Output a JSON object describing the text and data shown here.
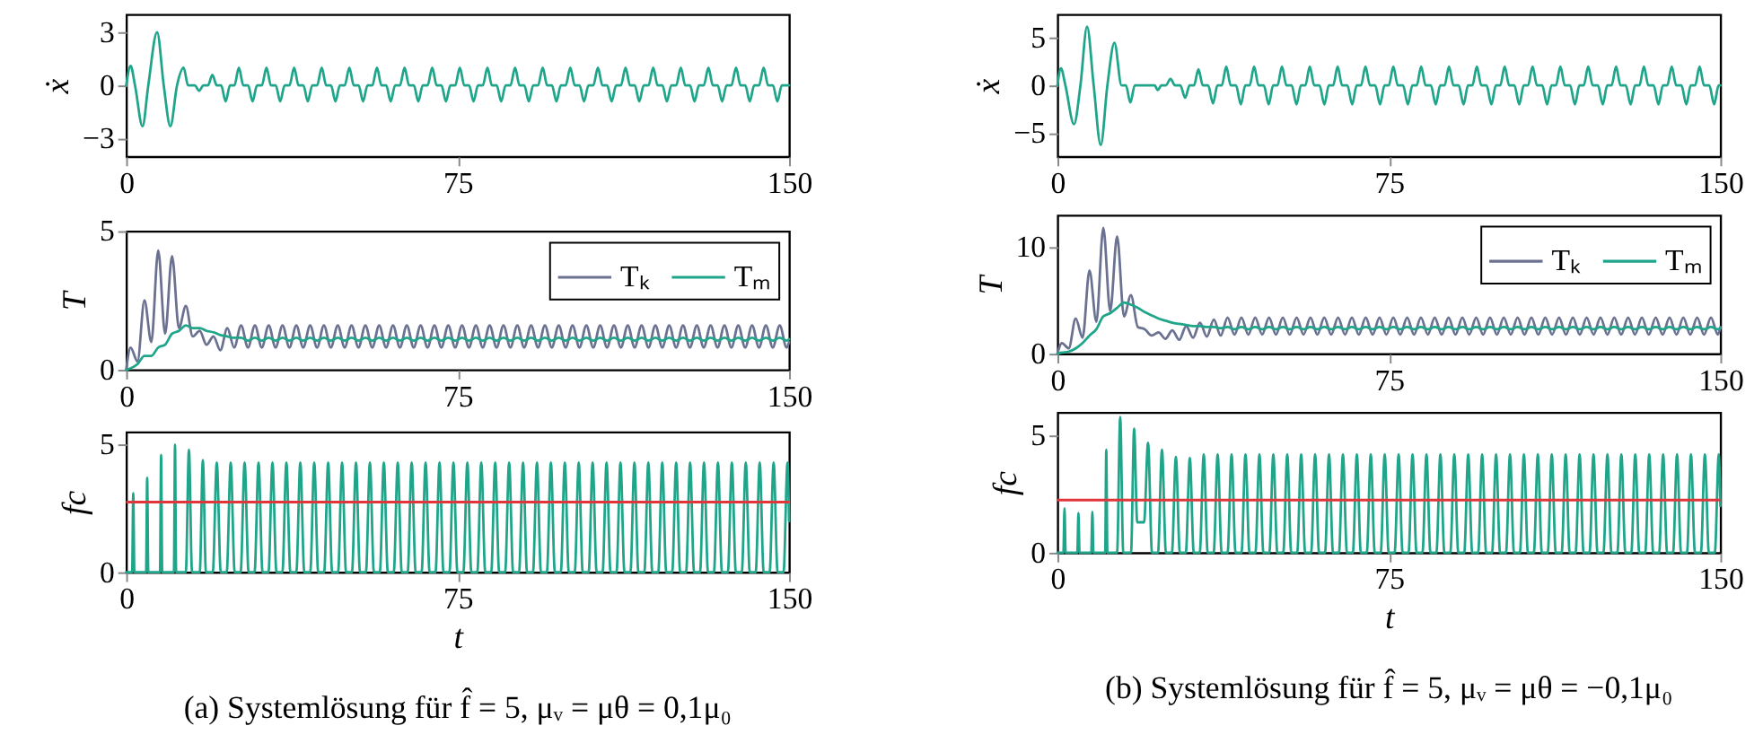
{
  "chart_data": [
    {
      "type": "line",
      "ylabel": "ẋ",
      "xlim": [
        0,
        150
      ],
      "ylim": [
        -4,
        4
      ],
      "xticks": [
        0,
        75,
        150
      ],
      "yticks": [
        -3,
        0,
        3
      ],
      "x": [
        0,
        1,
        2,
        3.7,
        5,
        7,
        8.5,
        10,
        11.5,
        13,
        14,
        15.5,
        16.5,
        17.5,
        18.5,
        19.5,
        20.5,
        21.5,
        22.5,
        23.5,
        24.5,
        25.5,
        26.5,
        27.6,
        28.6,
        29.6,
        30.7,
        31.75,
        32.75,
        33.85,
        34.85,
        35.85,
        36.95,
        38,
        39,
        40.1,
        41.1,
        42.1,
        43.2,
        44.25,
        45.25,
        46.35,
        47.35,
        48.35,
        49.45,
        50.5,
        51.5,
        52.6,
        53.6,
        54.6,
        55.7,
        56.75,
        57.75,
        58.85,
        59.85,
        60.85,
        61.95,
        63,
        64,
        65.1,
        66.1,
        67.1,
        68.2,
        69.25,
        70.25,
        71.35,
        72.35,
        73.35,
        74.45,
        75.5,
        76.5,
        77.6,
        78.6,
        79.6,
        80.7,
        81.75,
        82.75,
        83.85,
        84.85,
        85.85,
        86.95,
        88,
        89,
        90.1,
        91.1,
        92.1,
        93.2,
        94.25,
        95.25,
        96.35,
        97.35,
        98.35,
        99.45,
        100.5,
        101.5,
        102.6,
        103.6,
        104.6,
        105.7,
        106.75,
        107.75,
        108.85,
        109.85,
        110.85,
        111.95,
        113,
        114,
        115.1,
        116.1,
        117.1,
        118.2,
        119.25,
        120.25,
        121.35,
        122.35,
        123.35,
        124.45,
        125.5,
        126.5,
        127.6,
        128.6,
        129.6,
        130.7,
        131.75,
        132.75,
        133.85,
        134.85,
        135.85,
        136.95,
        138,
        139,
        140.1,
        141.1,
        142.1,
        143.2,
        144.25,
        145.25,
        146.35,
        147.35,
        148.35,
        149.45,
        150
      ],
      "series": [
        {
          "color": "#1fa58a",
          "values": [
            0,
            1.1,
            0,
            -2.3,
            0,
            3,
            0,
            -2.3,
            0,
            1,
            0,
            0,
            -0.3,
            0,
            0,
            0.6,
            0,
            0,
            -0.9,
            0,
            0,
            1,
            0,
            0,
            -0.9,
            0,
            0,
            1,
            0,
            0,
            -0.9,
            0,
            0,
            1,
            0,
            0,
            -0.9,
            0,
            0,
            1,
            0,
            0,
            -0.9,
            0,
            0,
            1,
            0,
            0,
            -0.9,
            0,
            0,
            1,
            0,
            0,
            -0.9,
            0,
            0,
            1,
            0,
            0,
            -0.9,
            0,
            0,
            1,
            0,
            0,
            -0.9,
            0,
            0,
            1,
            0,
            0,
            -0.9,
            0,
            0,
            1,
            0,
            0,
            -0.9,
            0,
            0,
            1,
            0,
            0,
            -0.9,
            0,
            0,
            1,
            0,
            0,
            -0.9,
            0,
            0,
            1,
            0,
            0,
            -0.9,
            0,
            0,
            1,
            0,
            0,
            -0.9,
            0,
            0,
            1,
            0,
            0,
            -0.9,
            0,
            0,
            1,
            0,
            0,
            -0.9,
            0,
            0,
            1,
            0,
            0,
            -0.9,
            0,
            0,
            1,
            0,
            0,
            -0.9,
            0,
            0,
            1,
            0,
            0,
            -0.9,
            0,
            0,
            1,
            0,
            0,
            -0.9,
            0,
            0,
            0
          ]
        }
      ]
    },
    {
      "type": "line",
      "ylabel": "T",
      "xlim": [
        0,
        150
      ],
      "ylim": [
        0,
        5
      ],
      "xticks": [
        0,
        75,
        150
      ],
      "yticks": [
        0,
        5
      ],
      "legend": "top right",
      "x": [
        0,
        1,
        2.56,
        4.13,
        5.69,
        7.25,
        8.81,
        10.38,
        11.94,
        13.5,
        15.06,
        16.63,
        18.19,
        19.75,
        21.31,
        22.88,
        24.44,
        26,
        27.56,
        29.13,
        30.69,
        32.25,
        33.81,
        35.38,
        36.94,
        38.5,
        40.06,
        41.63,
        43.19,
        44.75,
        46.31,
        47.88,
        49.44,
        51,
        52.56,
        54.13,
        55.69,
        57.25,
        58.81,
        60.38,
        61.94,
        63.5,
        65.06,
        66.63,
        68.19,
        69.75,
        71.31,
        72.88,
        74.44,
        76,
        77.56,
        79.13,
        80.69,
        82.25,
        83.81,
        85.38,
        86.94,
        88.5,
        90.06,
        91.63,
        93.19,
        94.75,
        96.31,
        97.88,
        99.44,
        101,
        102.56,
        104.13,
        105.69,
        107.25,
        108.81,
        110.38,
        111.94,
        113.5,
        115.06,
        116.63,
        118.19,
        119.75,
        121.31,
        122.88,
        124.44,
        126,
        127.56,
        129.13,
        130.69,
        132.25,
        133.81,
        135.38,
        136.94,
        138.5,
        140.06,
        141.63,
        143.19,
        144.75,
        146.31,
        147.88,
        149.44,
        150
      ],
      "series": [
        {
          "name": "Tₖ",
          "color": "#6b7191",
          "values": [
            0,
            0.8,
            0.3,
            2.5,
            1.0,
            4.3,
            1.3,
            4.1,
            1.5,
            2.3,
            1.2,
            1.4,
            0.9,
            1.2,
            0.7,
            1.5,
            0.8,
            1.6,
            0.8,
            1.6,
            0.8,
            1.6,
            0.8,
            1.6,
            0.8,
            1.6,
            0.8,
            1.6,
            0.8,
            1.6,
            0.8,
            1.6,
            0.8,
            1.6,
            0.8,
            1.6,
            0.8,
            1.6,
            0.8,
            1.6,
            0.8,
            1.6,
            0.8,
            1.6,
            0.8,
            1.6,
            0.8,
            1.6,
            0.8,
            1.6,
            0.8,
            1.6,
            0.8,
            1.6,
            0.8,
            1.6,
            0.8,
            1.6,
            0.8,
            1.6,
            0.8,
            1.6,
            0.8,
            1.6,
            0.8,
            1.6,
            0.8,
            1.6,
            0.8,
            1.6,
            0.8,
            1.6,
            0.8,
            1.6,
            0.8,
            1.6,
            0.8,
            1.6,
            0.8,
            1.6,
            0.8,
            1.6,
            0.8,
            1.6,
            0.8,
            1.6,
            0.8,
            1.6,
            0.8,
            1.6,
            0.8,
            1.6,
            0.8,
            1.6,
            0.8,
            1.6,
            0.8,
            1.0
          ]
        },
        {
          "name": "Tₘ",
          "color": "#1fa58a",
          "values": [
            0,
            0.05,
            0.2,
            0.5,
            0.5,
            0.8,
            0.9,
            1.3,
            1.4,
            1.6,
            1.5,
            1.5,
            1.4,
            1.35,
            1.25,
            1.2,
            1.15,
            1.15,
            1.05,
            1.15,
            1.05,
            1.15,
            1.05,
            1.15,
            1.05,
            1.15,
            1.05,
            1.15,
            1.05,
            1.15,
            1.05,
            1.15,
            1.05,
            1.15,
            1.05,
            1.15,
            1.05,
            1.15,
            1.05,
            1.15,
            1.05,
            1.15,
            1.05,
            1.15,
            1.05,
            1.15,
            1.05,
            1.15,
            1.05,
            1.15,
            1.05,
            1.15,
            1.05,
            1.15,
            1.05,
            1.15,
            1.05,
            1.15,
            1.05,
            1.15,
            1.05,
            1.15,
            1.05,
            1.15,
            1.05,
            1.15,
            1.05,
            1.15,
            1.05,
            1.15,
            1.05,
            1.15,
            1.05,
            1.15,
            1.05,
            1.15,
            1.05,
            1.15,
            1.05,
            1.15,
            1.05,
            1.15,
            1.05,
            1.15,
            1.05,
            1.15,
            1.05,
            1.15,
            1.05,
            1.15,
            1.05,
            1.15,
            1.05,
            1.15,
            1.05,
            1.15,
            1.05,
            1.1
          ]
        }
      ]
    },
    {
      "type": "line",
      "ylabel": "fc",
      "xlabel": "t",
      "xlim": [
        0,
        150
      ],
      "ylim": [
        0,
        5.5
      ],
      "xticks": [
        0,
        75,
        150
      ],
      "yticks": [
        0,
        5
      ],
      "ref_lines": [
        {
          "axis": "y",
          "value": 2.75,
          "color": "#e0353a"
        }
      ],
      "annotations": [
        "(a) Systemlösung für f̂ = 5, μᵥ = μθ = 0,1μ₀"
      ],
      "x": [
        0,
        1.35,
        1.6,
        1.85,
        4.5,
        4.75,
        5,
        7.65,
        7.9,
        8.15,
        10.8,
        11.05,
        11.3,
        13.5,
        14.2,
        14.9,
        16.65,
        17.35,
        18.05,
        19.6,
        20.5,
        21.4,
        22.75,
        23.65,
        24.55,
        25.9,
        26.8,
        27.7,
        29.05,
        29.95,
        30.85,
        32.2,
        33.1,
        34,
        35.35,
        36.25,
        37.15,
        38.5,
        39.4,
        40.3,
        41.65,
        42.55,
        43.45,
        44.8,
        45.7,
        46.6,
        47.95,
        48.85,
        49.75,
        51.1,
        52,
        52.9,
        54.25,
        55.15,
        56.05,
        57.4,
        58.3,
        59.2,
        60.55,
        61.45,
        62.35,
        63.7,
        64.6,
        65.5,
        66.85,
        67.75,
        68.65,
        70,
        70.9,
        71.8,
        73.15,
        74.05,
        74.95,
        76.3,
        77.2,
        78.1,
        79.45,
        80.35,
        81.25,
        82.6,
        83.5,
        84.4,
        85.75,
        86.65,
        87.55,
        88.9,
        89.8,
        90.7,
        92.05,
        92.95,
        93.85,
        95.2,
        96.1,
        97,
        98.35,
        99.25,
        100.15,
        101.5,
        102.4,
        103.3,
        104.65,
        105.55,
        106.45,
        107.8,
        108.7,
        109.6,
        110.95,
        111.85,
        112.75,
        114.1,
        115,
        115.9,
        117.25,
        118.15,
        119.05,
        120.4,
        121.3,
        122.2,
        123.55,
        124.45,
        125.35,
        126.7,
        127.6,
        128.5,
        129.85,
        130.75,
        131.65,
        133,
        133.9,
        134.8,
        136.15,
        137.05,
        137.95,
        139.3,
        140.2,
        141.1,
        142.45,
        143.35,
        144.25,
        145.6,
        146.5,
        147.4,
        148.75,
        149.65,
        150
      ],
      "series": [
        {
          "color": "#1fa58a",
          "values": [
            0,
            0,
            3.1,
            0,
            0,
            3.7,
            0,
            0,
            4.6,
            0,
            0,
            5,
            0,
            0,
            4.8,
            0,
            0,
            4.4,
            0,
            0,
            4.3,
            0,
            0,
            4.3,
            0,
            0,
            4.3,
            0,
            0,
            4.3,
            0,
            0,
            4.3,
            0,
            0,
            4.3,
            0,
            0,
            4.3,
            0,
            0,
            4.3,
            0,
            0,
            4.3,
            0,
            0,
            4.3,
            0,
            0,
            4.3,
            0,
            0,
            4.3,
            0,
            0,
            4.3,
            0,
            0,
            4.3,
            0,
            0,
            4.3,
            0,
            0,
            4.3,
            0,
            0,
            4.3,
            0,
            0,
            4.3,
            0,
            0,
            4.3,
            0,
            0,
            4.3,
            0,
            0,
            4.3,
            0,
            0,
            4.3,
            0,
            0,
            4.3,
            0,
            0,
            4.3,
            0,
            0,
            4.3,
            0,
            0,
            4.3,
            0,
            0,
            4.3,
            0,
            0,
            4.3,
            0,
            0,
            4.3,
            0,
            0,
            4.3,
            0,
            0,
            4.3,
            0,
            0,
            4.3,
            0,
            0,
            4.3,
            0,
            0,
            4.3,
            0,
            0,
            4.3,
            0,
            0,
            4.3,
            0,
            0,
            4.3,
            0,
            0,
            4.3,
            0,
            0,
            4.3,
            0,
            0,
            4.3,
            0,
            0,
            4.3,
            0,
            0,
            4.3,
            2
          ]
        }
      ]
    },
    {
      "type": "line",
      "ylabel": "ẋ",
      "xlim": [
        0,
        150
      ],
      "ylim": [
        -7.5,
        7.5
      ],
      "xticks": [
        0,
        75,
        150
      ],
      "yticks": [
        -5,
        0,
        5
      ],
      "x": [
        0,
        0.8,
        1.8,
        3.75,
        5.2,
        6.7,
        8.2,
        9.8,
        11.3,
        12.9,
        14.5,
        15.5,
        16.5,
        17.5,
        22,
        22.7,
        23.5,
        24.5,
        25.6,
        26.6,
        27.8,
        28.9,
        29.9,
        30.9,
        31.9,
        32.9,
        34.1,
        35.2,
        36.2,
        37.2,
        38.2,
        39.2,
        40.4,
        41.5,
        42.5,
        43.5,
        44.5,
        45.5,
        46.7,
        47.8,
        48.8,
        49.8,
        50.8,
        51.8,
        53,
        54.1,
        55.1,
        56.1,
        57.1,
        58.1,
        59.3,
        60.4,
        61.4,
        62.4,
        63.4,
        64.4,
        65.6,
        66.7,
        67.7,
        68.7,
        69.7,
        70.7,
        71.9,
        73,
        74,
        75,
        76,
        77,
        78.2,
        79.3,
        80.3,
        81.3,
        82.3,
        83.3,
        84.5,
        85.6,
        86.6,
        87.6,
        88.6,
        89.6,
        90.8,
        91.9,
        92.9,
        93.9,
        94.9,
        95.9,
        97.1,
        98.2,
        99.2,
        100.2,
        101.2,
        102.2,
        103.4,
        104.5,
        105.5,
        106.5,
        107.5,
        108.5,
        109.7,
        110.8,
        111.8,
        112.8,
        113.8,
        114.8,
        116,
        117.1,
        118.1,
        119.1,
        120.1,
        121.1,
        122.3,
        123.4,
        124.4,
        125.4,
        126.4,
        127.4,
        128.6,
        129.7,
        130.7,
        131.7,
        132.7,
        133.7,
        134.9,
        136,
        137,
        138,
        139,
        140,
        141.2,
        142.3,
        143.3,
        144.3,
        145.3,
        146.3,
        147.5,
        148.6,
        149.6,
        150
      ],
      "series": [
        {
          "color": "#1fa58a",
          "values": [
            0,
            1.8,
            0,
            -4.1,
            0,
            6.2,
            0,
            -6.3,
            0,
            4.5,
            0,
            0,
            -1.8,
            0,
            0,
            -0.5,
            0,
            0,
            0.7,
            0,
            0,
            -1.3,
            0,
            0,
            1.7,
            0,
            0,
            -1.9,
            0,
            0,
            2,
            0,
            0,
            -2,
            0,
            0,
            2,
            0,
            0,
            -2,
            0,
            0,
            2,
            0,
            0,
            -2,
            0,
            0,
            2,
            0,
            0,
            -2,
            0,
            0,
            2,
            0,
            0,
            -2,
            0,
            0,
            2,
            0,
            0,
            -2,
            0,
            0,
            2,
            0,
            0,
            -2,
            0,
            0,
            2,
            0,
            0,
            -2,
            0,
            0,
            2,
            0,
            0,
            -2,
            0,
            0,
            2,
            0,
            0,
            -2,
            0,
            0,
            2,
            0,
            0,
            -2,
            0,
            0,
            2,
            0,
            0,
            -2,
            0,
            0,
            2,
            0,
            0,
            -2,
            0,
            0,
            2,
            0,
            0,
            -2,
            0,
            0,
            2,
            0,
            0,
            -2,
            0,
            0,
            2,
            0,
            0,
            -2,
            0,
            0,
            2,
            0,
            0,
            -2,
            0,
            0,
            2,
            0,
            0,
            -2,
            0,
            0
          ]
        }
      ]
    },
    {
      "type": "line",
      "ylabel": "T",
      "xlim": [
        0,
        150
      ],
      "ylim": [
        0,
        13
      ],
      "xticks": [
        0,
        75,
        150
      ],
      "yticks": [
        0,
        10
      ],
      "legend": "top right",
      "x": [
        0,
        1,
        2.56,
        4.13,
        5.69,
        7.25,
        8.81,
        10.38,
        11.94,
        13.5,
        15.06,
        16.63,
        18.19,
        19.75,
        21.31,
        22.88,
        24.44,
        26,
        27.56,
        29.13,
        30.69,
        32.25,
        33.81,
        35.38,
        36.94,
        38.5,
        40.06,
        41.63,
        43.19,
        44.75,
        46.31,
        47.88,
        49.44,
        51,
        52.56,
        54.13,
        55.69,
        57.25,
        58.81,
        60.38,
        61.94,
        63.5,
        65.06,
        66.63,
        68.19,
        69.75,
        71.31,
        72.88,
        74.44,
        76,
        77.56,
        79.13,
        80.69,
        82.25,
        83.81,
        85.38,
        86.94,
        88.5,
        90.06,
        91.63,
        93.19,
        94.75,
        96.31,
        97.88,
        99.44,
        101,
        102.56,
        104.13,
        105.69,
        107.25,
        108.81,
        110.38,
        111.94,
        113.5,
        115.06,
        116.63,
        118.19,
        119.75,
        121.31,
        122.88,
        124.44,
        126,
        127.56,
        129.13,
        130.69,
        132.25,
        133.81,
        135.38,
        136.94,
        138.5,
        140.06,
        141.63,
        143.19,
        144.75,
        146.31,
        147.88,
        149.44,
        150
      ],
      "series": [
        {
          "name": "Tₖ",
          "color": "#6b7191",
          "values": [
            0,
            1,
            0.5,
            3.3,
            1.5,
            7.8,
            3,
            11.8,
            4,
            11,
            3.5,
            5.5,
            2.5,
            2.3,
            1.7,
            2,
            1.4,
            2.2,
            1.3,
            2.6,
            1.5,
            2.9,
            1.6,
            3.2,
            1.7,
            3.4,
            1.8,
            3.4,
            1.8,
            3.4,
            1.8,
            3.4,
            1.8,
            3.4,
            1.8,
            3.4,
            1.8,
            3.4,
            1.8,
            3.4,
            1.8,
            3.4,
            1.8,
            3.4,
            1.8,
            3.4,
            1.8,
            3.4,
            1.8,
            3.4,
            1.8,
            3.4,
            1.8,
            3.4,
            1.8,
            3.4,
            1.8,
            3.4,
            1.8,
            3.4,
            1.8,
            3.4,
            1.8,
            3.4,
            1.8,
            3.4,
            1.8,
            3.4,
            1.8,
            3.4,
            1.8,
            3.4,
            1.8,
            3.4,
            1.8,
            3.4,
            1.8,
            3.4,
            1.8,
            3.4,
            1.8,
            3.4,
            1.8,
            3.4,
            1.8,
            3.4,
            1.8,
            3.4,
            1.8,
            3.4,
            1.8,
            3.4,
            1.8,
            3.4,
            1.8,
            3.4,
            1.8,
            2.5
          ]
        },
        {
          "name": "Tₘ",
          "color": "#1fa58a",
          "values": [
            0,
            0.1,
            0.2,
            0.5,
            1.0,
            1.7,
            2.3,
            3.5,
            3.8,
            4.3,
            4.8,
            4.6,
            4.3,
            3.9,
            3.6,
            3.3,
            3.1,
            2.9,
            2.8,
            2.7,
            2.6,
            2.6,
            2.5,
            2.5,
            2.4,
            2.5,
            2.3,
            2.5,
            2.3,
            2.5,
            2.3,
            2.5,
            2.3,
            2.5,
            2.3,
            2.5,
            2.3,
            2.5,
            2.3,
            2.5,
            2.3,
            2.5,
            2.3,
            2.5,
            2.3,
            2.5,
            2.3,
            2.5,
            2.3,
            2.5,
            2.3,
            2.5,
            2.3,
            2.5,
            2.3,
            2.5,
            2.3,
            2.5,
            2.3,
            2.5,
            2.3,
            2.5,
            2.3,
            2.5,
            2.3,
            2.5,
            2.3,
            2.5,
            2.3,
            2.5,
            2.3,
            2.5,
            2.3,
            2.5,
            2.3,
            2.5,
            2.3,
            2.5,
            2.3,
            2.5,
            2.3,
            2.5,
            2.3,
            2.5,
            2.3,
            2.5,
            2.3,
            2.5,
            2.3,
            2.5,
            2.3,
            2.5,
            2.3,
            2.5,
            2.3,
            2.5,
            2.3,
            2.4
          ]
        }
      ]
    },
    {
      "type": "line",
      "ylabel": "fc",
      "xlabel": "t",
      "xlim": [
        0,
        150
      ],
      "ylim": [
        0,
        6
      ],
      "xticks": [
        0,
        75,
        150
      ],
      "yticks": [
        0,
        5
      ],
      "ref_lines": [
        {
          "axis": "y",
          "value": 2.25,
          "color": "#e0353a"
        }
      ],
      "annotations": [
        "(b) Systemlösung für f̂ = 5, μᵥ = μθ = −0,1μ₀"
      ],
      "x": [
        0,
        1.35,
        1.6,
        1.85,
        4.5,
        4.75,
        5,
        7.65,
        7.9,
        8.15,
        10.8,
        11.05,
        11.3,
        13.5,
        14.2,
        14.9,
        16.65,
        17.35,
        18.05,
        19.6,
        20.5,
        21.4,
        22.75,
        23.65,
        24.55,
        25.9,
        26.8,
        27.7,
        29.05,
        29.95,
        30.85,
        32.2,
        33.1,
        34,
        35.35,
        36.25,
        37.15,
        38.5,
        39.4,
        40.3,
        41.65,
        42.55,
        43.45,
        44.8,
        45.7,
        46.6,
        47.95,
        48.85,
        49.75,
        51.1,
        52,
        52.9,
        54.25,
        55.15,
        56.05,
        57.4,
        58.3,
        59.2,
        60.55,
        61.45,
        62.35,
        63.7,
        64.6,
        65.5,
        66.85,
        67.75,
        68.65,
        70,
        70.9,
        71.8,
        73.15,
        74.05,
        74.95,
        76.3,
        77.2,
        78.1,
        79.45,
        80.35,
        81.25,
        82.6,
        83.5,
        84.4,
        85.75,
        86.65,
        87.55,
        88.9,
        89.8,
        90.7,
        92.05,
        92.95,
        93.85,
        95.2,
        96.1,
        97,
        98.35,
        99.25,
        100.15,
        101.5,
        102.4,
        103.3,
        104.65,
        105.55,
        106.45,
        107.8,
        108.7,
        109.6,
        110.95,
        111.85,
        112.75,
        114.1,
        115,
        115.9,
        117.25,
        118.15,
        119.05,
        120.4,
        121.3,
        122.2,
        123.55,
        124.45,
        125.35,
        126.7,
        127.6,
        128.5,
        129.85,
        130.75,
        131.65,
        133,
        133.9,
        134.8,
        136.15,
        137.05,
        137.95,
        139.3,
        140.2,
        141.1,
        142.45,
        143.35,
        144.25,
        145.6,
        146.5,
        147.4,
        148.75,
        149.65,
        150
      ],
      "series": [
        {
          "color": "#1fa58a",
          "values": [
            0,
            0,
            1.9,
            0,
            0,
            1.7,
            0,
            0,
            1.75,
            0,
            0,
            4.4,
            0,
            0,
            5.8,
            0,
            0,
            5.3,
            1.3,
            1.3,
            4.7,
            0,
            0,
            4.4,
            0,
            0,
            4.1,
            0,
            0,
            4.05,
            0,
            0,
            4.2,
            0,
            0,
            4.2,
            0,
            0,
            4.2,
            0,
            0,
            4.2,
            0,
            0,
            4.2,
            0,
            0,
            4.2,
            0,
            0,
            4.2,
            0,
            0,
            4.2,
            0,
            0,
            4.2,
            0,
            0,
            4.2,
            0,
            0,
            4.2,
            0,
            0,
            4.2,
            0,
            0,
            4.2,
            0,
            0,
            4.2,
            0,
            0,
            4.2,
            0,
            0,
            4.2,
            0,
            0,
            4.2,
            0,
            0,
            4.2,
            0,
            0,
            4.2,
            0,
            0,
            4.2,
            0,
            0,
            4.2,
            0,
            0,
            4.2,
            0,
            0,
            4.2,
            0,
            0,
            4.2,
            0,
            0,
            4.2,
            0,
            0,
            4.2,
            0,
            0,
            4.2,
            0,
            0,
            4.2,
            0,
            0,
            4.2,
            0,
            0,
            4.2,
            0,
            0,
            4.2,
            0,
            0,
            4.2,
            0,
            0,
            4.2,
            0,
            0,
            4.2,
            0,
            0,
            4.2,
            0,
            0,
            4.2,
            0,
            0,
            4.2,
            0,
            0,
            4.2,
            2
          ]
        }
      ]
    }
  ]
}
